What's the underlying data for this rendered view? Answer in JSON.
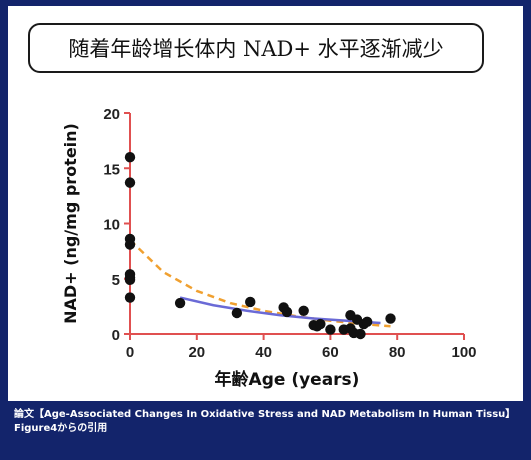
{
  "header": {
    "title": "随着年龄增长体内 NAD+ 水平逐渐减少"
  },
  "chart_data": {
    "type": "scatter",
    "title": "",
    "xlabel": "年齢Age (years)",
    "ylabel": "NAD+ (ng/mg protein)",
    "xlim": [
      0,
      100
    ],
    "ylim": [
      0,
      20
    ],
    "xticks": [
      0,
      20,
      40,
      60,
      80,
      100
    ],
    "yticks": [
      0,
      5,
      10,
      15,
      20
    ],
    "grid": false,
    "legend": "none",
    "series": [
      {
        "type": "scatter",
        "color": "#111111",
        "x": [
          0,
          0,
          0,
          0,
          0,
          0,
          0,
          0,
          15,
          32,
          36,
          46,
          47,
          52,
          55,
          56,
          57,
          60,
          64,
          66,
          66,
          67,
          68,
          69,
          70,
          71,
          78
        ],
        "y": [
          16.0,
          13.7,
          8.6,
          8.1,
          5.4,
          5.1,
          4.9,
          3.3,
          2.8,
          1.9,
          2.9,
          2.4,
          2.0,
          2.1,
          0.8,
          0.7,
          0.9,
          0.4,
          0.4,
          0.5,
          1.7,
          0.1,
          1.3,
          0.0,
          0.9,
          1.1,
          1.4
        ]
      },
      {
        "type": "line",
        "style": "dashed",
        "color": "#f0a030",
        "x": [
          0,
          10,
          20,
          30,
          40,
          50,
          60,
          70,
          78
        ],
        "y": [
          8.5,
          5.6,
          3.9,
          2.8,
          2.1,
          1.6,
          1.2,
          0.9,
          0.7
        ]
      },
      {
        "type": "line",
        "style": "solid",
        "color": "#6a6ad6",
        "x": [
          15,
          25,
          35,
          45,
          55,
          65,
          75
        ],
        "y": [
          3.3,
          2.6,
          2.1,
          1.7,
          1.4,
          1.2,
          1.0
        ]
      }
    ]
  },
  "caption": {
    "line1": "論文【Age-Associated Changes In Oxidative Stress and NAD Metabolism In Human Tissu】",
    "line2": "Figure4からの引用"
  },
  "colors": {
    "background": "#13246b",
    "axis": "#e05050",
    "tick_text": "#222222"
  }
}
